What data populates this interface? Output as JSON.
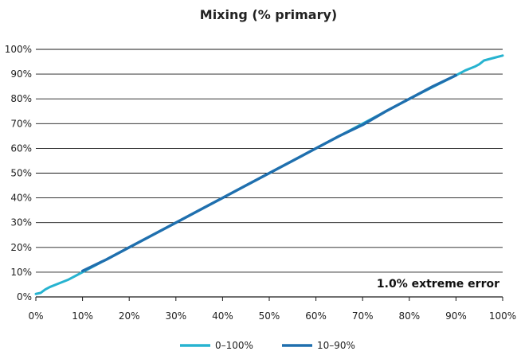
{
  "chart_data": {
    "type": "line",
    "title": "Mixing (% primary)",
    "xlabel": "",
    "ylabel": "",
    "xlim": [
      0,
      100
    ],
    "ylim": [
      0,
      100
    ],
    "x_ticks": [
      "0%",
      "10%",
      "20%",
      "30%",
      "40%",
      "50%",
      "60%",
      "70%",
      "80%",
      "90%",
      "100%"
    ],
    "y_ticks": [
      "0%",
      "10%",
      "20%",
      "30%",
      "40%",
      "50%",
      "60%",
      "70%",
      "80%",
      "90%",
      "100%"
    ],
    "grid": "horizontal",
    "legend_position": "bottom",
    "annotation": "1.0% extreme error",
    "series": [
      {
        "name": "0–100%",
        "color": "#27b3d0",
        "x": [
          0,
          1,
          2,
          3,
          5,
          7,
          9,
          10,
          15,
          20,
          30,
          40,
          50,
          60,
          70,
          80,
          90,
          92,
          94,
          95,
          96,
          98,
          100
        ],
        "y": [
          1.2,
          1.6,
          3.0,
          4.0,
          5.5,
          7.0,
          9.0,
          10.0,
          15.0,
          20.0,
          30.0,
          40.0,
          50.0,
          60.0,
          70.0,
          80.0,
          89.5,
          91.5,
          93.0,
          94.0,
          95.5,
          96.5,
          97.5
        ]
      },
      {
        "name": "10–90%",
        "color": "#1f6fae",
        "x": [
          10,
          15,
          20,
          25,
          30,
          35,
          40,
          45,
          50,
          55,
          60,
          65,
          70,
          75,
          80,
          85,
          90
        ],
        "y": [
          10.5,
          15.0,
          20.0,
          25.0,
          30.0,
          35.0,
          40.0,
          45.0,
          50.0,
          55.0,
          60.0,
          65.0,
          69.5,
          75.0,
          80.0,
          85.0,
          89.5
        ]
      }
    ]
  }
}
